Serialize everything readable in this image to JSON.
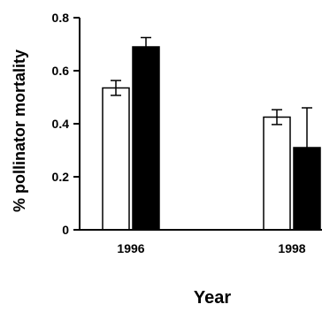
{
  "chart_data": {
    "type": "bar",
    "title": "",
    "xlabel": "Year",
    "ylabel": "% pollinator mortality",
    "ylim": [
      0,
      0.8
    ],
    "yticks": [
      0,
      0.2,
      0.4,
      0.6,
      0.8
    ],
    "ytick_labels": [
      "0",
      "0.2",
      "0.4",
      "0.6",
      "0.8"
    ],
    "categories": [
      "1996",
      "1998"
    ],
    "grid": false,
    "series": [
      {
        "values": [
          0.535,
          0.425
        ],
        "errors": [
          0.028,
          0.028
        ],
        "color": "#ffffff"
      },
      {
        "values": [
          0.69,
          0.31
        ],
        "errors": [
          0.035,
          0.15
        ],
        "color": "#000000"
      }
    ]
  }
}
